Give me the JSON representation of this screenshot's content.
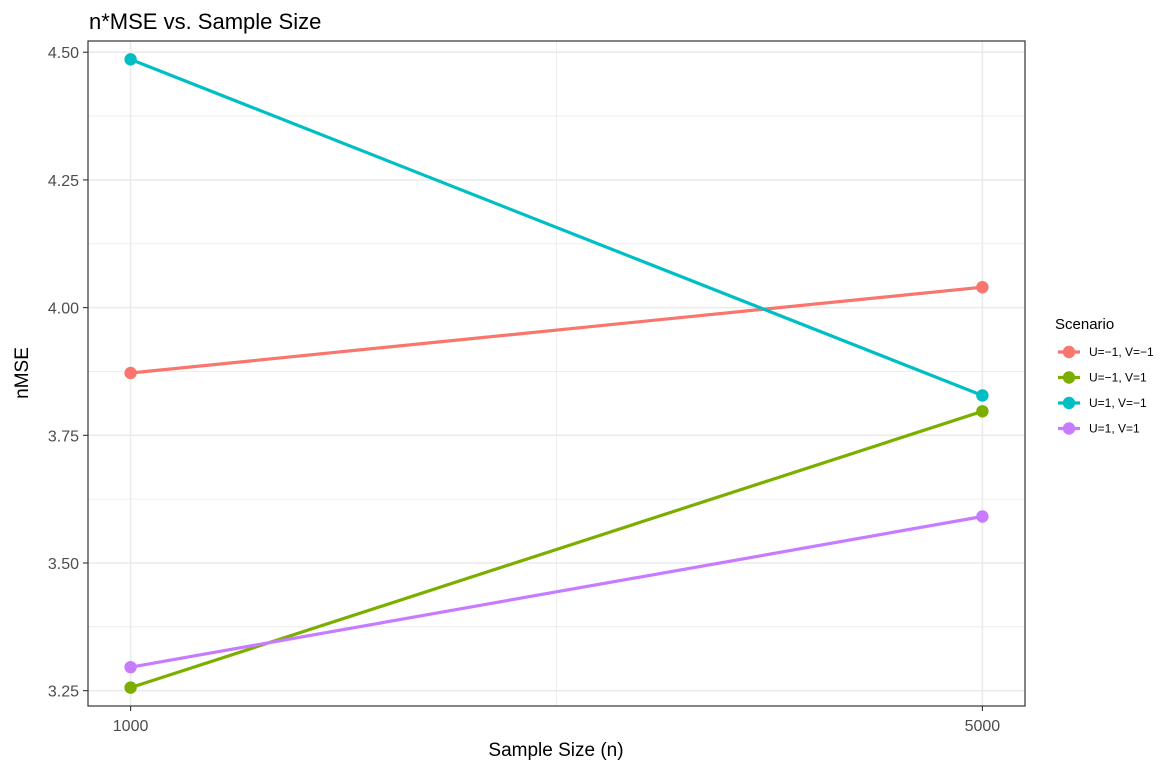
{
  "chart_data": {
    "type": "line",
    "title": "n*MSE vs. Sample Size",
    "xlabel": "Sample Size (n)",
    "ylabel": "nMSE",
    "x": [
      1000,
      5000
    ],
    "x_tick_labels": [
      "1000",
      "5000"
    ],
    "xlim": [
      800,
      5200
    ],
    "ylim": [
      3.22,
      4.522
    ],
    "y_ticks": [
      3.25,
      3.5,
      3.75,
      4.0,
      4.25,
      4.5
    ],
    "y_tick_labels": [
      "3.25",
      "3.50",
      "3.75",
      "4.00",
      "4.25",
      "4.50"
    ],
    "grid": true,
    "legend_title": "Scenario",
    "legend_position": "right",
    "series": [
      {
        "name": "U=−1, V=−1",
        "color": "#F8766D",
        "values": [
          3.872,
          4.04
        ]
      },
      {
        "name": "U=−1, V=1",
        "color": "#7CAE00",
        "values": [
          3.256,
          3.797
        ]
      },
      {
        "name": "U=1, V=−1",
        "color": "#00BFC4",
        "values": [
          4.486,
          3.828
        ]
      },
      {
        "name": "U=1, V=1",
        "color": "#C77CFF",
        "values": [
          3.296,
          3.591
        ]
      }
    ]
  }
}
